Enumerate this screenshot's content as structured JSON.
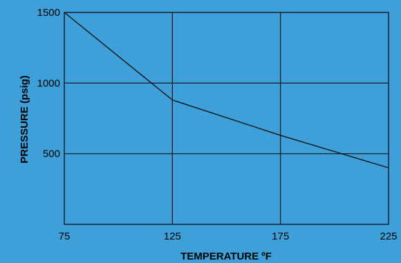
{
  "theme": {
    "background": "#3f9fd8",
    "line_color": "#111111",
    "grid_color": "#111111"
  },
  "chart_data": {
    "type": "line",
    "xlabel": "TEMPERATURE ºF",
    "ylabel": "PRESSURE (psig)",
    "x_ticks": [
      75,
      125,
      175,
      225
    ],
    "y_ticks": [
      500,
      1000,
      1500
    ],
    "xlim": [
      75,
      225
    ],
    "ylim": [
      0,
      1500
    ],
    "grid": true,
    "series": [
      {
        "x": [
          75,
          125,
          175,
          225
        ],
        "y": [
          1500,
          880,
          630,
          400
        ]
      }
    ]
  }
}
